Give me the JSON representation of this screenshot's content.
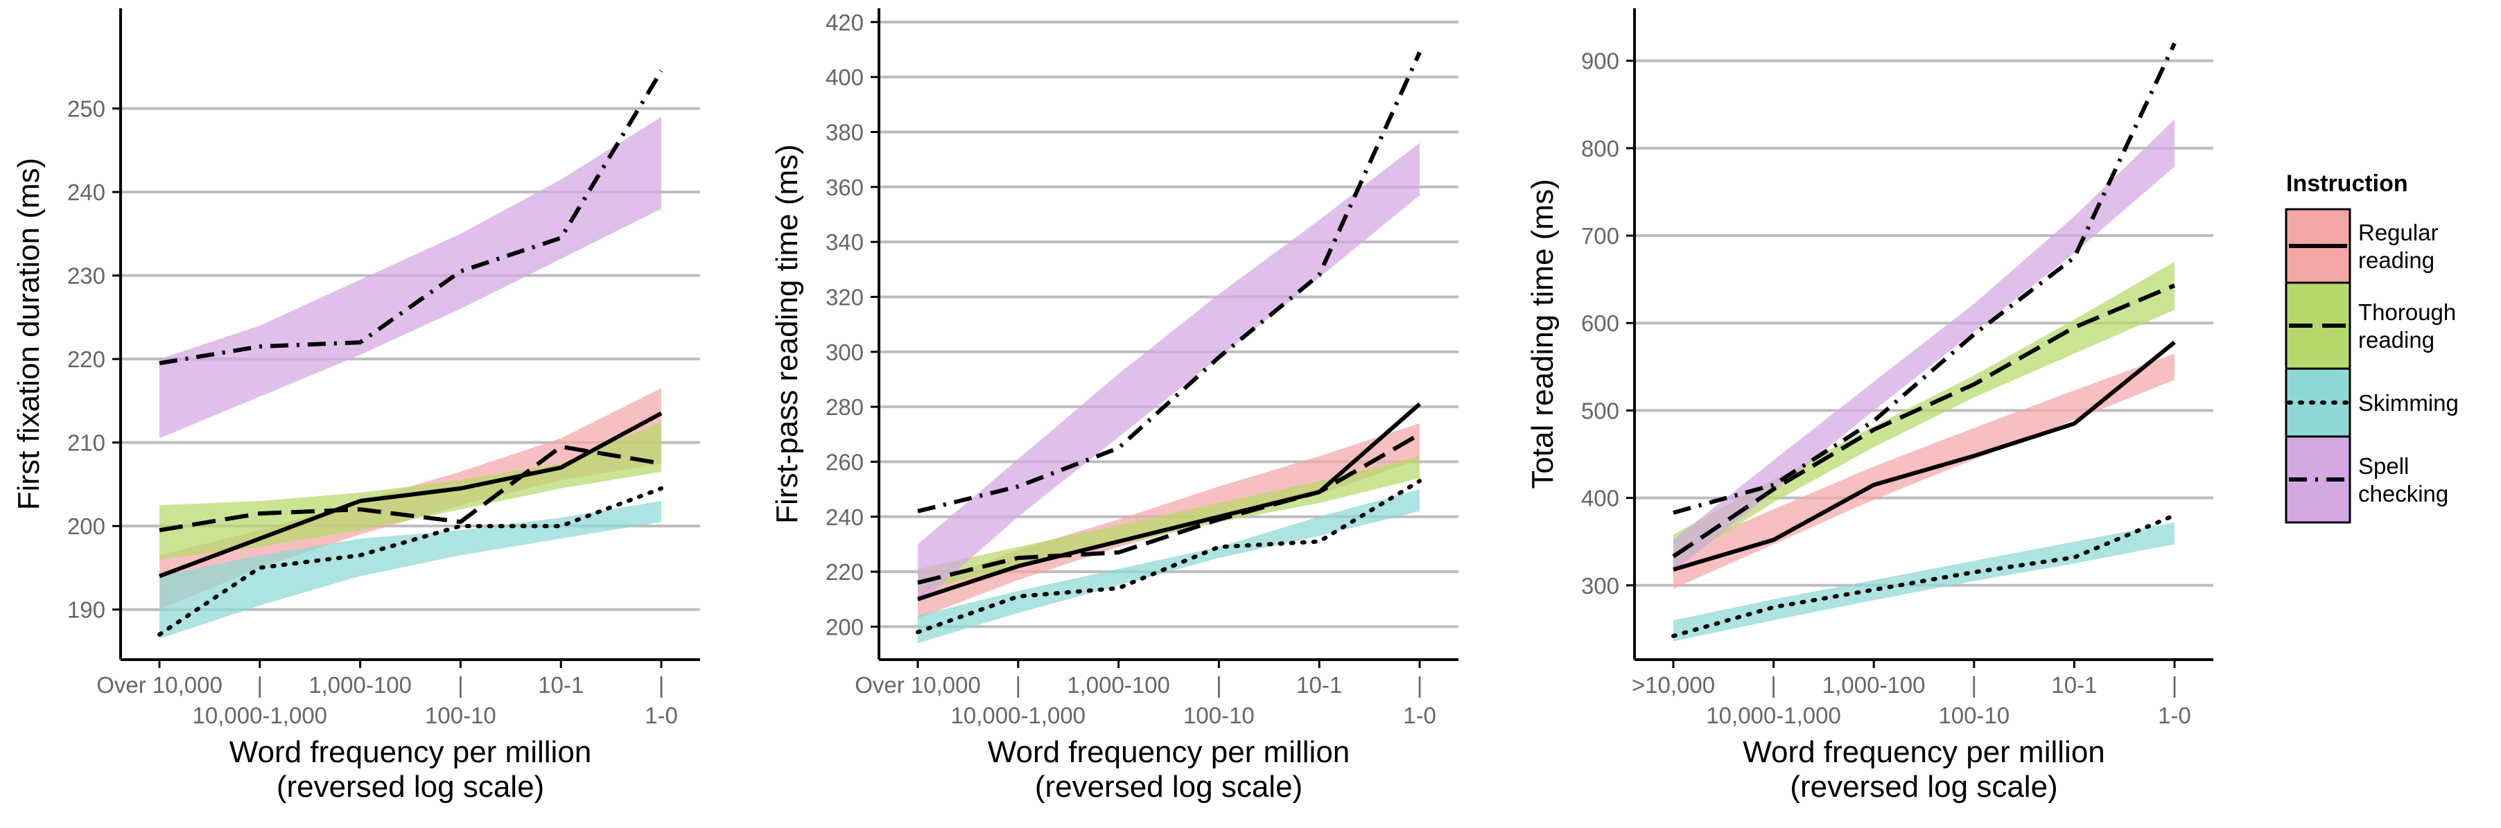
{
  "legend": {
    "title": "Instruction",
    "items": [
      {
        "label": [
          "Regular",
          "reading"
        ],
        "color": "#f4a6a6",
        "dash": "solid"
      },
      {
        "label": [
          "Thorough",
          "reading"
        ],
        "color": "#b5d96a",
        "dash": "longdash"
      },
      {
        "label": [
          "Skimming"
        ],
        "color": "#8ed8d6",
        "dash": "dotted"
      },
      {
        "label": [
          "Spell",
          "checking"
        ],
        "color": "#d4a8e2",
        "dash": "dashdot"
      }
    ]
  },
  "chart_data": [
    {
      "type": "line",
      "ylabel": "First fixation duration (ms)",
      "xlabel": [
        "Word frequency per million",
        "(reversed log scale)"
      ],
      "ylim": [
        184,
        262
      ],
      "yticks": [
        190,
        200,
        210,
        220,
        230,
        240,
        250
      ],
      "x_ticks_top": [
        "Over 10,000",
        "1,000-100",
        "10-1"
      ],
      "x_ticks_bottom": [
        "10,000-1,000",
        "100-10",
        "1-0"
      ],
      "grid": true,
      "series": [
        {
          "values": [
            194,
            198.5,
            203,
            204.5,
            207,
            213.5
          ],
          "band_low": [
            190,
            195,
            199,
            202.5,
            205.5,
            207.5
          ],
          "band_high": [
            196.5,
            199.5,
            203,
            206.5,
            210.5,
            216.5
          ]
        },
        {
          "values": [
            199.5,
            201.5,
            202,
            200.5,
            209.5,
            207.5
          ],
          "band_low": [
            196,
            197.5,
            199.5,
            202,
            204.5,
            206.5
          ],
          "band_high": [
            202.5,
            203,
            204,
            205.5,
            207.5,
            212.5
          ]
        },
        {
          "values": [
            187,
            195,
            196.5,
            200,
            200,
            204.5
          ],
          "band_low": [
            186.5,
            190.5,
            194,
            196.5,
            198.5,
            200.5
          ],
          "band_high": [
            194,
            196.5,
            198.5,
            199.5,
            201,
            203
          ]
        },
        {
          "values": [
            219.5,
            221.5,
            222,
            230.5,
            234.5,
            254.5
          ],
          "band_low": [
            210.5,
            215.5,
            220.5,
            226,
            232,
            238
          ],
          "band_high": [
            220,
            224,
            229.5,
            235,
            241.5,
            249
          ]
        }
      ]
    },
    {
      "type": "line",
      "ylabel": "First-pass reading time (ms)",
      "xlabel": [
        "Word frequency per million",
        "(reversed log scale)"
      ],
      "ylim": [
        188,
        425
      ],
      "yticks": [
        200,
        220,
        240,
        260,
        280,
        300,
        320,
        340,
        360,
        380,
        400,
        420
      ],
      "x_ticks_top": [
        "Over 10,000",
        "1,000-100",
        "10-1"
      ],
      "x_ticks_bottom": [
        "10,000-1,000",
        "100-10",
        "1-0"
      ],
      "grid": true,
      "series": [
        {
          "values": [
            210,
            222,
            231,
            240,
            249,
            281
          ],
          "band_low": [
            203,
            217,
            229,
            239,
            248,
            261
          ],
          "band_high": [
            214,
            228,
            239,
            251,
            262,
            274
          ]
        },
        {
          "values": [
            216,
            225,
            227,
            239,
            249,
            270
          ],
          "band_low": [
            213,
            222,
            230,
            238,
            245,
            254
          ],
          "band_high": [
            221,
            229,
            237,
            245,
            253,
            262
          ]
        },
        {
          "values": [
            198,
            211,
            214,
            229,
            231,
            253
          ],
          "band_low": [
            194,
            205,
            215,
            225,
            233,
            242
          ],
          "band_high": [
            204,
            213,
            221,
            229,
            240,
            250
          ]
        },
        {
          "values": [
            242,
            251,
            265,
            298,
            328,
            409
          ],
          "band_low": [
            208,
            240,
            269,
            298,
            327,
            357
          ],
          "band_high": [
            230,
            261,
            292,
            321,
            348,
            376
          ]
        }
      ]
    },
    {
      "type": "line",
      "ylabel": "Total reading time (ms)",
      "xlabel": [
        "Word frequency per million",
        "(reversed log scale)"
      ],
      "ylim": [
        215,
        960
      ],
      "yticks": [
        300,
        400,
        500,
        600,
        700,
        800,
        900
      ],
      "x_ticks_top": [
        ">10,000",
        "1,000-100",
        "10-1"
      ],
      "x_ticks_bottom": [
        "10,000-1,000",
        "100-10",
        "1-0"
      ],
      "grid": true,
      "series": [
        {
          "values": [
            318,
            352,
            415,
            448,
            485,
            578
          ],
          "band_low": [
            296,
            347,
            398,
            444,
            489,
            535
          ],
          "band_high": [
            338,
            387,
            436,
            480,
            523,
            565
          ]
        },
        {
          "values": [
            333,
            410,
            478,
            530,
            595,
            643
          ],
          "band_low": [
            322,
            395,
            458,
            515,
            565,
            615
          ],
          "band_high": [
            358,
            421,
            482,
            540,
            604,
            670
          ]
        },
        {
          "values": [
            242,
            275,
            295,
            315,
            332,
            380
          ],
          "band_low": [
            236,
            260,
            283,
            305,
            325,
            347
          ],
          "band_high": [
            260,
            284,
            306,
            328,
            350,
            372
          ]
        },
        {
          "values": [
            383,
            415,
            488,
            587,
            675,
            920
          ],
          "band_low": [
            316,
            407,
            500,
            590,
            680,
            779
          ],
          "band_high": [
            352,
            443,
            533,
            622,
            722,
            833
          ]
        }
      ]
    }
  ]
}
